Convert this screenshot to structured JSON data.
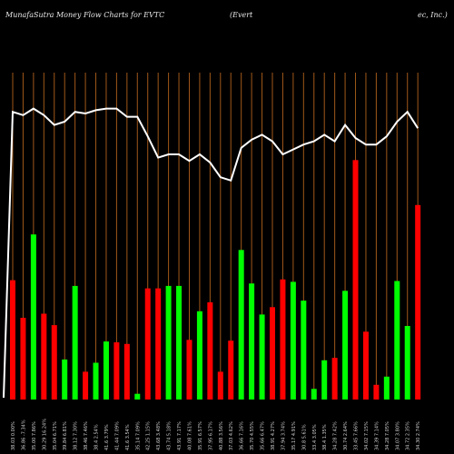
{
  "chart_data": {
    "type": "bar",
    "title_left": "MunafaSutra  Money Flow  Charts for EVTC",
    "title_mid": "(Evert",
    "title_right": "ec, Inc.)",
    "series": [
      {
        "values": [
          14.6,
          10.0,
          20.2,
          10.5,
          9.1,
          4.9,
          13.9,
          3.4,
          4.5,
          7.1,
          7.0,
          6.8,
          0.7,
          13.6,
          13.6,
          13.9,
          13.9,
          7.3,
          10.8,
          11.9,
          3.4,
          7.2,
          18.3,
          14.2,
          10.4,
          11.3,
          14.7,
          14.4,
          12.1,
          1.3,
          4.8,
          5.1,
          13.3,
          29.3,
          8.3,
          1.8,
          2.8,
          14.5,
          9.0,
          23.8
        ],
        "colors": [
          "red",
          "red",
          "green",
          "red",
          "red",
          "green",
          "green",
          "red",
          "green",
          "green",
          "red",
          "red",
          "green",
          "red",
          "red",
          "green",
          "green",
          "red",
          "green",
          "red",
          "red",
          "red",
          "green",
          "green",
          "green",
          "red",
          "red",
          "green",
          "green",
          "green",
          "green",
          "red",
          "green",
          "red",
          "red",
          "red",
          "green",
          "green",
          "green",
          "red"
        ]
      },
      {
        "values": [
          88.0,
          87.0,
          89.0,
          87.0,
          84.0,
          85.0,
          88.0,
          87.5,
          88.5,
          89.0,
          89.0,
          86.5,
          86.5,
          80.5,
          74.0,
          75.0,
          75.0,
          73.0,
          75.0,
          72.5,
          68.0,
          67.0,
          77.0,
          79.5,
          81.0,
          79.0,
          75.0,
          76.5,
          78.0,
          79.0,
          81.0,
          79.0,
          84.0,
          80.0,
          78.0,
          78.0,
          80.5,
          85.0,
          88.0,
          83.0
        ]
      }
    ],
    "x_labels": [
      "38.03 0.00%",
      "36.86 -7.34%",
      "35.00 7.86%",
      "30.29 16.24%",
      "35.04 6.71%",
      "39.84 6.81%",
      "38.12 7.30%",
      "38.46 7.46%",
      "38.4 2.54%",
      "41.6 3.79%",
      "41.44 7.09%",
      "41.6 3.54%",
      "35.14 7.09%",
      "42.25 1.15%",
      "43.68 3.48%",
      "43.74 5.18%",
      "43.91 7.17%",
      "40.08 7.61%",
      "35.91 6.57%",
      "37.95 6.17%",
      "40.88 3.56%",
      "37.03 4.62%",
      "36.66 7.16%",
      "35.70 4.55%",
      "35.66 6.47%",
      "38.91 4.27%",
      "37.94 3.74%",
      "35.17 4.91%",
      "30.8 5.61%",
      "33.4 3.05%",
      "38.4 1.35%",
      "34.28 7.42%",
      "30.74 2.64%",
      "33.45 7.66%",
      "34.02 7.15%",
      "34.39 7.14%",
      "34.28 7.05%",
      "34.07 3.80%",
      "34.72 2.35%",
      "34.30 2.74%"
    ]
  }
}
